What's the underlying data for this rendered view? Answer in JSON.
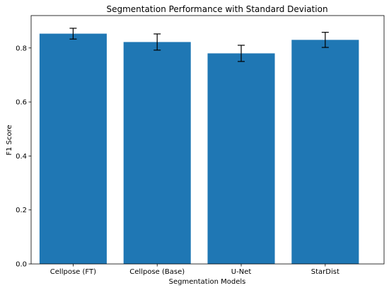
{
  "chart_data": {
    "type": "bar",
    "title": "Segmentation Performance with Standard Deviation",
    "xlabel": "Segmentation Models",
    "ylabel": "F1 Score",
    "categories": [
      "Cellpose (FT)",
      "Cellpose (Base)",
      "U-Net",
      "StarDist"
    ],
    "values": [
      0.853,
      0.822,
      0.78,
      0.83
    ],
    "errors": [
      0.02,
      0.03,
      0.03,
      0.028
    ],
    "ylim": [
      0,
      0.92
    ],
    "yticks": [
      "0.0",
      "0.2",
      "0.4",
      "0.6",
      "0.8"
    ],
    "bar_color": "#1f77b4",
    "error_color": "#000000",
    "grid": false,
    "legend": "none"
  }
}
